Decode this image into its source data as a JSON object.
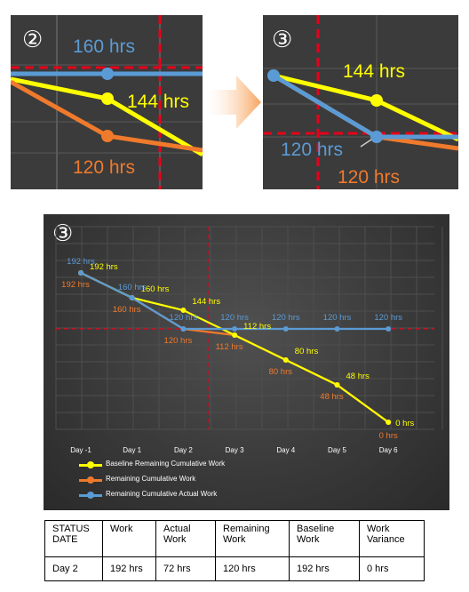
{
  "panel_zoom_2": {
    "marker": "②",
    "blue_label": "160 hrs",
    "yellow_label": "144 hrs",
    "orange_label": "120 hrs"
  },
  "panel_zoom_3": {
    "marker": "③",
    "yellow_label": "144 hrs",
    "blue_label": "120 hrs",
    "orange_label": "120 hrs"
  },
  "colors": {
    "baseline": "#ffff00",
    "remaining": "#f07a2c",
    "actual": "#5b9bd5",
    "status_line": "#e8001a",
    "arrow": "#f7a35c"
  },
  "chart_data": {
    "type": "line",
    "marker": "③",
    "categories": [
      "Day -1",
      "Day 1",
      "Day 2",
      "Day 3",
      "Day 4",
      "Day 5",
      "Day 6"
    ],
    "series": [
      {
        "name": "Baseline Remaining Cumulative Work",
        "values": [
          192,
          160,
          144,
          112,
          80,
          48,
          0
        ],
        "labels": [
          "192 hrs",
          "160 hrs",
          "144 hrs",
          "112 hrs",
          "80 hrs",
          "48 hrs",
          "0 hrs"
        ]
      },
      {
        "name": "Remaining Cumulative Work",
        "values": [
          192,
          160,
          120,
          112,
          80,
          48,
          0
        ],
        "labels": [
          "192 hrs",
          "160 hrs",
          "120 hrs",
          "112 hrs",
          "80 hrs",
          "48 hrs",
          "0 hrs"
        ]
      },
      {
        "name": "Remaining Cumulative Actual Work",
        "values": [
          192,
          160,
          120,
          120,
          120,
          120,
          120
        ],
        "labels": [
          "192 hrs",
          "160 hrs",
          "120 hrs",
          "120 hrs",
          "120 hrs",
          "120 hrs",
          "120 hrs"
        ]
      }
    ],
    "status_day": "Day 2",
    "status_value": 120,
    "ylim": [
      0,
      210
    ],
    "grid": true,
    "legend_position": "bottom-left"
  },
  "status_table": {
    "headers": [
      "STATUS DATE",
      "Work",
      "Actual Work",
      "Remaining Work",
      "Baseline Work",
      "Work Variance"
    ],
    "values": [
      "Day 2",
      "192 hrs",
      "72 hrs",
      "120 hrs",
      "192 hrs",
      "0 hrs"
    ]
  }
}
